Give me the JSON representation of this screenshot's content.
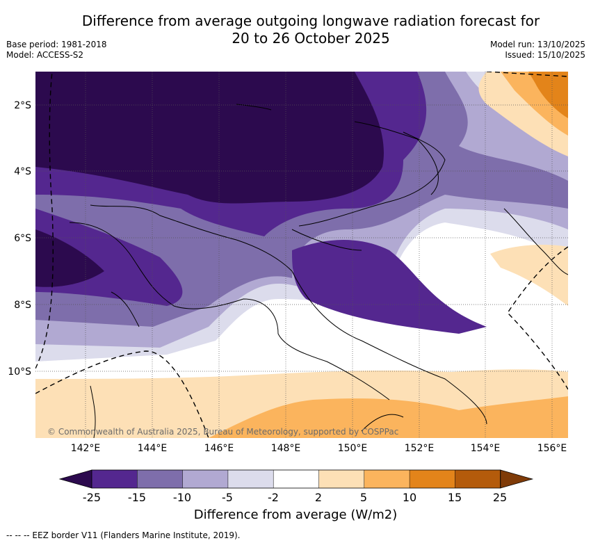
{
  "title_line1": "Difference from average outgoing longwave radiation forecast for",
  "title_line2": "20 to 26 October 2025",
  "meta_left": [
    "Base period: 1981-2018",
    "Model: ACCESS-S2"
  ],
  "meta_right": [
    "Model run: 13/10/2025",
    "Issued: 15/10/2025"
  ],
  "lat_labels": [
    "2°S",
    "4°S",
    "6°S",
    "8°S",
    "10°S"
  ],
  "lon_labels": [
    "142°E",
    "144°E",
    "146°E",
    "148°E",
    "150°E",
    "152°E",
    "154°E",
    "156°E"
  ],
  "copyright": "© Commonwealth of Australia 2025, Bureau of Meteorology, supported by COSPPac",
  "colorbar": {
    "levels": [
      "-25",
      "-15",
      "-10",
      "-5",
      "-2",
      "2",
      "5",
      "10",
      "15",
      "25"
    ],
    "colors": [
      "#2c0a4e",
      "#54278f",
      "#7e6eab",
      "#b1a9d2",
      "#dcdcec",
      "#ffffff",
      "#fde0b6",
      "#fbb45d",
      "#e3841a",
      "#b45b0b",
      "#7f3b08"
    ],
    "label": "Difference from average (W/m2)"
  },
  "footer": "--  --  -- EEZ border V11 (Flanders Marine Institute, 2019)."
}
